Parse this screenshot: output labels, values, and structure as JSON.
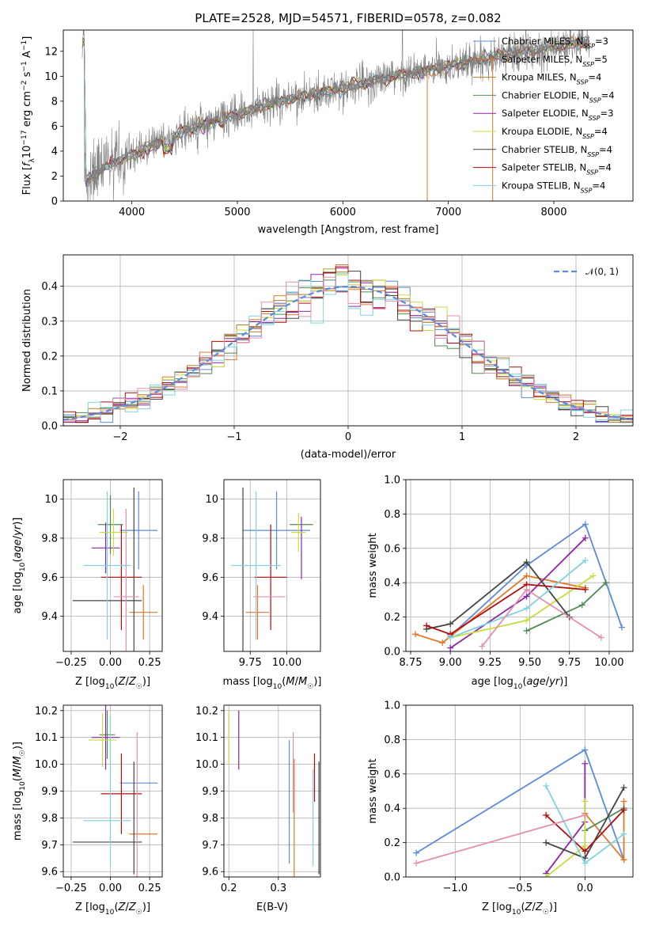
{
  "colors": {
    "Chabrier MILES": "#5b8bd9",
    "Salpeter MILES": "#e0782a",
    "Kroupa MILES": "#b97a1a",
    "Chabrier ELODIE": "#4f8a56",
    "Salpeter ELODIE": "#8e24aa",
    "Kroupa ELODIE": "#c9dd3a",
    "Chabrier STELIB": "#444444",
    "Salpeter STELIB": "#b00d0d",
    "Kroupa STELIB": "#7fd3e0",
    "extra": "#e58fb0",
    "gaussian": "#5b8bd9"
  },
  "chart_data": [
    {
      "type": "line",
      "id": "spectrum",
      "title": "PLATE=2528, MJD=54571, FIBERID=0578, z=0.082",
      "xlabel": "wavelength [Angstrom, rest frame]",
      "ylabel": "Flux [f_λ10^-17 erg cm^-2 s^-1 A^-1]",
      "xlim": [
        3350,
        8750
      ],
      "ylim": [
        0,
        13.7
      ],
      "xticks": [
        4000,
        5000,
        6000,
        7000,
        8000
      ],
      "yticks": [
        0,
        2,
        4,
        6,
        8,
        10,
        12
      ],
      "legend": "top-right",
      "series": [
        {
          "name": "Chabrier MILES",
          "nssp": "3"
        },
        {
          "name": "Salpeter MILES",
          "nssp": "5"
        },
        {
          "name": "Kroupa MILES",
          "nssp": "4"
        },
        {
          "name": "Chabrier ELODIE",
          "nssp": "4"
        },
        {
          "name": "Salpeter ELODIE",
          "nssp": "3"
        },
        {
          "name": "Kroupa ELODIE",
          "nssp": "4"
        },
        {
          "name": "Chabrier STELIB",
          "nssp": "4"
        },
        {
          "name": "Salpeter STELIB",
          "nssp": "4"
        },
        {
          "name": "Kroupa STELIB",
          "nssp": "4"
        }
      ],
      "continuum": [
        [
          3550,
          1.6
        ],
        [
          3800,
          3.0
        ],
        [
          4100,
          4.1
        ],
        [
          4500,
          5.6
        ],
        [
          5000,
          7.0
        ],
        [
          5500,
          8.2
        ],
        [
          6000,
          9.1
        ],
        [
          6500,
          10.0
        ],
        [
          7000,
          10.8
        ],
        [
          7500,
          11.7
        ],
        [
          8000,
          12.3
        ],
        [
          8300,
          12.8
        ]
      ]
    },
    {
      "type": "line",
      "id": "residuals",
      "xlabel": "(data-model)/error",
      "ylabel": "Normed distribution",
      "xlim": [
        -2.5,
        2.5
      ],
      "ylim": [
        0,
        0.49
      ],
      "xticks": [
        -2,
        -1,
        0,
        1,
        2
      ],
      "yticks": [
        0.0,
        0.1,
        0.2,
        0.3,
        0.4
      ],
      "legend": "top-right",
      "legend_label": "𝒩(0, 1)",
      "bins": 46
    },
    {
      "type": "scatter",
      "id": "age_vs_Z",
      "xlabel": "Z [log10(Z/Z☉)]",
      "ylabel": "age [log10(age/yr)]",
      "xlim": [
        -0.3,
        0.33
      ],
      "ylim": [
        9.22,
        10.1
      ],
      "xticks": [
        -0.25,
        0.0,
        0.25
      ],
      "xticklabels": [
        "−0.25",
        "0.00",
        "0.25"
      ],
      "yticks": [
        9.4,
        9.6,
        9.8,
        10.0
      ],
      "points": [
        {
          "c": "Chabrier MILES",
          "x": 0.18,
          "xerr": 0.12,
          "y": 9.84,
          "yerr": 0.2
        },
        {
          "c": "Salpeter MILES",
          "x": 0.21,
          "xerr": 0.09,
          "y": 9.42,
          "yerr": 0.14
        },
        {
          "c": "Chabrier ELODIE",
          "x": 0.0,
          "xerr": 0.08,
          "y": 9.87,
          "yerr": 0.15
        },
        {
          "c": "Salpeter ELODIE",
          "x": -0.03,
          "xerr": 0.09,
          "y": 9.75,
          "yerr": 0.13
        },
        {
          "c": "Kroupa ELODIE",
          "x": 0.02,
          "xerr": 0.09,
          "y": 9.83,
          "yerr": 0.12
        },
        {
          "c": "Chabrier STELIB",
          "x": -0.02,
          "xerr": 0.22,
          "y": 9.48,
          "yerr": 0.0
        },
        {
          "c": "Chabrier STELIB",
          "x": 0.15,
          "xerr": 0.0,
          "y": 9.6,
          "yerr": 0.46
        },
        {
          "c": "Salpeter STELIB",
          "x": 0.07,
          "xerr": 0.13,
          "y": 9.6,
          "yerr": 0.27
        },
        {
          "c": "Kroupa STELIB",
          "x": -0.02,
          "xerr": 0.15,
          "y": 9.66,
          "yerr": 0.38
        },
        {
          "c": "extra",
          "x": 0.1,
          "xerr": 0.08,
          "y": 9.5,
          "yerr": 0.45
        }
      ]
    },
    {
      "type": "scatter",
      "id": "age_vs_mass",
      "xlabel": "mass [log10(M/M☉)]",
      "ylabel": "",
      "xlim": [
        9.57,
        10.23
      ],
      "ylim": [
        9.22,
        10.1
      ],
      "xticks": [
        9.75,
        10.0
      ],
      "xticklabels": [
        "9.75",
        "10.00"
      ],
      "yticks": [
        9.4,
        9.6,
        9.8,
        10.0
      ],
      "points": [
        {
          "c": "Chabrier MILES",
          "x": 9.93,
          "xerr": 0.23,
          "y": 9.84,
          "yerr": 0.2
        },
        {
          "c": "Salpeter MILES",
          "x": 9.8,
          "xerr": 0.08,
          "y": 9.42,
          "yerr": 0.14
        },
        {
          "c": "Chabrier ELODIE",
          "x": 10.1,
          "xerr": 0.08,
          "y": 9.87,
          "yerr": 0.0
        },
        {
          "c": "Salpeter ELODIE",
          "x": 10.1,
          "xerr": 0.0,
          "y": 9.75,
          "yerr": 0.16
        },
        {
          "c": "Kroupa ELODIE",
          "x": 10.08,
          "xerr": 0.05,
          "y": 9.83,
          "yerr": 0.1
        },
        {
          "c": "Chabrier STELIB",
          "x": 9.7,
          "xerr": 0.0,
          "y": 9.6,
          "yerr": 0.46
        },
        {
          "c": "Salpeter STELIB",
          "x": 9.89,
          "xerr": 0.11,
          "y": 9.6,
          "yerr": 0.27
        },
        {
          "c": "Kroupa STELIB",
          "x": 9.79,
          "xerr": 0.17,
          "y": 9.66,
          "yerr": 0.38
        },
        {
          "c": "extra",
          "x": 9.88,
          "xerr": 0.11,
          "y": 9.5,
          "yerr": 0.0
        }
      ]
    },
    {
      "type": "line",
      "id": "weight_vs_age",
      "xlabel": "age [log10(age/yr)]",
      "ylabel": "mass weight",
      "xlim": [
        8.72,
        10.15
      ],
      "ylim": [
        0,
        1
      ],
      "xticks": [
        8.75,
        9.0,
        9.25,
        9.5,
        9.75,
        10.0
      ],
      "xticklabels": [
        "8.75",
        "9.00",
        "9.25",
        "9.50",
        "9.75",
        "10.00"
      ],
      "yticks": [
        0.0,
        0.2,
        0.4,
        0.6,
        0.8,
        1.0
      ],
      "yticklabels": [
        "0.0",
        "0.2",
        "0.4",
        "0.6",
        "0.8",
        "1.0"
      ],
      "series": [
        {
          "c": "Chabrier MILES",
          "x": [
            9.0,
            9.48,
            9.85,
            10.08
          ],
          "y": [
            0.09,
            0.5,
            0.74,
            0.14
          ]
        },
        {
          "c": "Salpeter MILES",
          "x": [
            8.78,
            8.95,
            9.48,
            9.85
          ],
          "y": [
            0.1,
            0.05,
            0.44,
            0.37
          ]
        },
        {
          "c": "Chabrier ELODIE",
          "x": [
            9.48,
            9.83,
            9.98
          ],
          "y": [
            0.12,
            0.27,
            0.4
          ]
        },
        {
          "c": "Salpeter ELODIE",
          "x": [
            9.0,
            9.48,
            9.85
          ],
          "y": [
            0.02,
            0.32,
            0.66
          ]
        },
        {
          "c": "Kroupa ELODIE",
          "x": [
            9.0,
            9.48,
            9.9
          ],
          "y": [
            0.08,
            0.18,
            0.44
          ]
        },
        {
          "c": "Chabrier STELIB",
          "x": [
            8.85,
            9.0,
            9.48,
            9.75
          ],
          "y": [
            0.13,
            0.16,
            0.52,
            0.2
          ]
        },
        {
          "c": "Salpeter STELIB",
          "x": [
            8.85,
            9.0,
            9.48,
            9.85
          ],
          "y": [
            0.15,
            0.1,
            0.39,
            0.36
          ]
        },
        {
          "c": "Kroupa STELIB",
          "x": [
            9.0,
            9.48,
            9.85
          ],
          "y": [
            0.08,
            0.25,
            0.53
          ]
        },
        {
          "c": "extra",
          "x": [
            9.2,
            9.48,
            9.95
          ],
          "y": [
            0.03,
            0.36,
            0.08
          ]
        }
      ]
    },
    {
      "type": "scatter",
      "id": "mass_vs_Z",
      "xlabel": "Z [log10(Z/Z☉)]",
      "ylabel": "mass [log10(M/M☉)]",
      "xlim": [
        -0.3,
        0.33
      ],
      "ylim": [
        9.58,
        10.22
      ],
      "xticks": [
        -0.25,
        0.0,
        0.25
      ],
      "xticklabels": [
        "−0.25",
        "0.00",
        "0.25"
      ],
      "yticks": [
        9.6,
        9.7,
        9.8,
        9.9,
        10.0,
        10.1,
        10.2
      ],
      "yticklabels": [
        "9.6",
        "9.7",
        "9.8",
        "9.9",
        "10.0",
        "10.1",
        "10.2"
      ],
      "points": [
        {
          "c": "Chabrier MILES",
          "x": 0.18,
          "xerr": 0.12,
          "y": 9.93,
          "yerr": 0.0
        },
        {
          "c": "Salpeter MILES",
          "x": 0.21,
          "xerr": 0.09,
          "y": 9.74,
          "yerr": 0.0
        },
        {
          "c": "Chabrier ELODIE",
          "x": -0.02,
          "xerr": 0.05,
          "y": 10.11,
          "yerr": 0.09
        },
        {
          "c": "Salpeter ELODIE",
          "x": -0.03,
          "xerr": 0.09,
          "y": 10.1,
          "yerr": 0.12
        },
        {
          "c": "Kroupa ELODIE",
          "x": -0.05,
          "xerr": 0.09,
          "y": 10.09,
          "yerr": 0.1
        },
        {
          "c": "Chabrier STELIB",
          "x": -0.02,
          "xerr": 0.22,
          "y": 9.71,
          "yerr": 0.0
        },
        {
          "c": "Chabrier STELIB",
          "x": 0.15,
          "xerr": 0.0,
          "y": 9.8,
          "yerr": 0.21
        },
        {
          "c": "Salpeter STELIB",
          "x": 0.07,
          "xerr": 0.13,
          "y": 9.89,
          "yerr": 0.15
        },
        {
          "c": "Kroupa STELIB",
          "x": -0.02,
          "xerr": 0.15,
          "y": 9.79,
          "yerr": 0.0
        },
        {
          "c": "Kroupa STELIB",
          "x": 0.0,
          "xerr": 0.0,
          "y": 9.9,
          "yerr": 0.28
        },
        {
          "c": "extra",
          "x": 0.17,
          "xerr": 0.0,
          "y": 9.85,
          "yerr": 0.27
        }
      ]
    },
    {
      "type": "scatter",
      "id": "mass_vs_ebv",
      "xlabel": "E(B-V)",
      "ylabel": "",
      "xlim": [
        0.19,
        0.385
      ],
      "ylim": [
        9.58,
        10.22
      ],
      "xticks": [
        0.2,
        0.3
      ],
      "xticklabels": [
        "0.2",
        "0.3"
      ],
      "yticks": [
        9.6,
        9.7,
        9.8,
        9.9,
        10.0,
        10.1,
        10.2
      ],
      "yticklabels": [
        "9.6",
        "9.7",
        "9.8",
        "9.9",
        "10.0",
        "10.1",
        "10.2"
      ],
      "points": [
        {
          "c": "Kroupa ELODIE",
          "x": 0.2,
          "xerr": 0.0,
          "y": 10.1,
          "yerr": 0.1
        },
        {
          "c": "Salpeter ELODIE",
          "x": 0.22,
          "xerr": 0.0,
          "y": 10.09,
          "yerr": 0.11
        },
        {
          "c": "Chabrier MILES",
          "x": 0.322,
          "xerr": 0.0,
          "y": 9.86,
          "yerr": 0.23
        },
        {
          "c": "extra",
          "x": 0.33,
          "xerr": 0.0,
          "y": 9.97,
          "yerr": 0.15
        },
        {
          "c": "Salpeter MILES",
          "x": 0.332,
          "xerr": 0.0,
          "y": 9.8,
          "yerr": 0.22
        },
        {
          "c": "Kroupa STELIB",
          "x": 0.37,
          "xerr": 0.0,
          "y": 9.8,
          "yerr": 0.18
        },
        {
          "c": "Salpeter STELIB",
          "x": 0.373,
          "xerr": 0.0,
          "y": 9.95,
          "yerr": 0.09
        },
        {
          "c": "Chabrier STELIB",
          "x": 0.382,
          "xerr": 0.0,
          "y": 9.8,
          "yerr": 0.21
        }
      ]
    },
    {
      "type": "line",
      "id": "weight_vs_Z",
      "xlabel": "Z [log10(Z/Z☉)]",
      "ylabel": "mass weight",
      "xlim": [
        -1.38,
        0.37
      ],
      "ylim": [
        0,
        1
      ],
      "xticks": [
        -1.0,
        -0.5,
        0.0
      ],
      "xticklabels": [
        "−1.0",
        "−0.5",
        "0.0"
      ],
      "yticks": [
        0.0,
        0.2,
        0.4,
        0.6,
        0.8,
        1.0
      ],
      "yticklabels": [
        "0.0",
        "0.2",
        "0.4",
        "0.6",
        "0.8",
        "1.0"
      ],
      "series": [
        {
          "c": "Chabrier MILES",
          "x": [
            -1.3,
            0.0,
            0.3
          ],
          "y": [
            0.14,
            0.74,
            0.1
          ]
        },
        {
          "c": "Salpeter MILES",
          "x": [
            0.0,
            0.3,
            0.3
          ],
          "y": [
            0.37,
            0.1,
            0.44
          ]
        },
        {
          "c": "Chabrier ELODIE",
          "x": [
            0.0,
            0.3
          ],
          "y": [
            0.27,
            0.4
          ]
        },
        {
          "c": "Salpeter ELODIE",
          "x": [
            0.0,
            0.0,
            -0.3
          ],
          "y": [
            0.66,
            0.32,
            0.02
          ]
        },
        {
          "c": "Kroupa ELODIE",
          "x": [
            -0.3,
            0.0,
            0.0
          ],
          "y": [
            0.0,
            0.18,
            0.44
          ]
        },
        {
          "c": "Chabrier STELIB",
          "x": [
            -0.3,
            0.0,
            0.3
          ],
          "y": [
            0.2,
            0.11,
            0.52
          ]
        },
        {
          "c": "Salpeter STELIB",
          "x": [
            -0.3,
            0.0,
            0.3
          ],
          "y": [
            0.36,
            0.15,
            0.39
          ]
        },
        {
          "c": "Kroupa STELIB",
          "x": [
            -0.3,
            0.0,
            0.3
          ],
          "y": [
            0.53,
            0.08,
            0.25
          ]
        },
        {
          "c": "extra",
          "x": [
            -1.3,
            0.0
          ],
          "y": [
            0.08,
            0.36
          ]
        }
      ]
    }
  ]
}
